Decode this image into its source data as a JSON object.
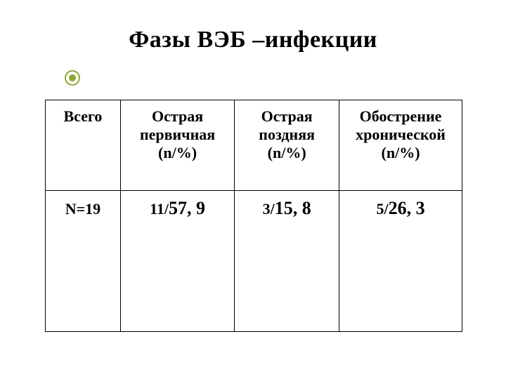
{
  "title": "Фазы ВЭБ –инфекции",
  "table": {
    "headers": {
      "c0": "Всего",
      "c1": "Острая первичная (n/%)",
      "c2": "Острая поздняя (n/%)",
      "c3": "Обострение хронической (n/%)"
    },
    "row": {
      "c0": "N=19",
      "c1_small": "11/",
      "c1_big": "57, 9",
      "c2_small": "3/",
      "c2_big": "15, 8",
      "c3_small": "5/",
      "c3_big": "26, 3"
    }
  },
  "colors": {
    "bullet": "#8aa830",
    "text": "#000000",
    "bg": "#ffffff",
    "border": "#000000"
  }
}
